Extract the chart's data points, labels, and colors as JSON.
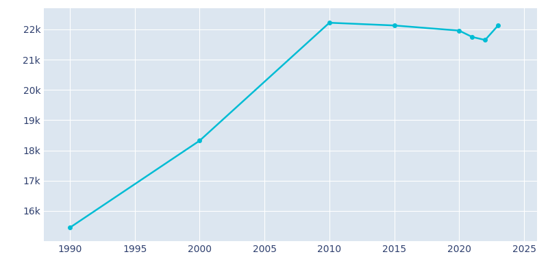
{
  "years": [
    1990,
    2000,
    2010,
    2015,
    2020,
    2021,
    2022,
    2023
  ],
  "population": [
    15445,
    18320,
    22220,
    22130,
    21960,
    21750,
    21650,
    22130
  ],
  "line_color": "#00BCD4",
  "bg_color": "#ffffff",
  "axes_bg_color": "#dce6f0",
  "text_color": "#2e3f6e",
  "xlim": [
    1988,
    2026
  ],
  "ylim": [
    15000,
    22700
  ],
  "yticks": [
    16000,
    17000,
    18000,
    19000,
    20000,
    21000,
    22000
  ],
  "xticks": [
    1990,
    1995,
    2000,
    2005,
    2010,
    2015,
    2020,
    2025
  ],
  "line_width": 1.8,
  "marker": "o",
  "marker_size": 4
}
